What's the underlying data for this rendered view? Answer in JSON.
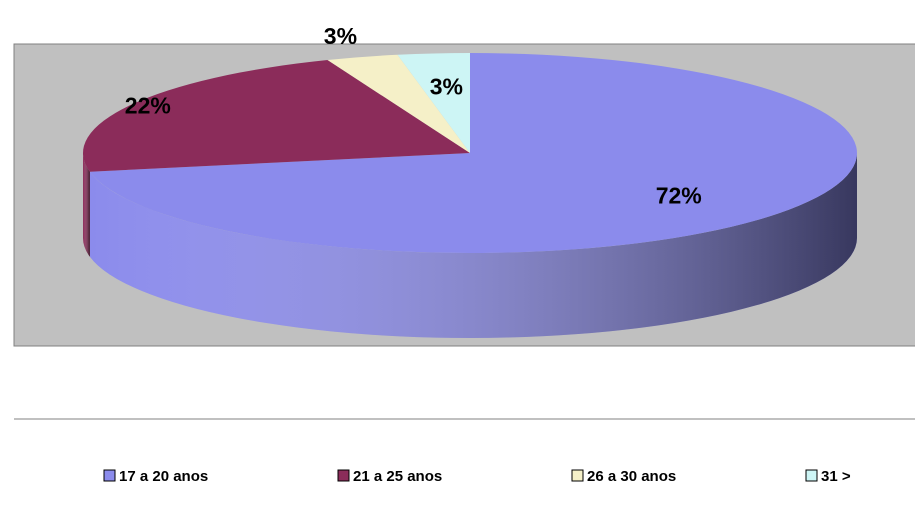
{
  "chart_data": {
    "type": "pie",
    "categories": [
      "17 a 20 anos",
      "21 a 25 anos",
      "26 a 30 anos",
      "31 >"
    ],
    "values": [
      72,
      22,
      3,
      3
    ],
    "value_labels": [
      "72%",
      "22%",
      "3%",
      "3%"
    ],
    "colors": [
      "#8b8bec",
      "#8b2c5a",
      "#f5f0c8",
      "#cdf5f5"
    ],
    "legend": "bottom"
  }
}
